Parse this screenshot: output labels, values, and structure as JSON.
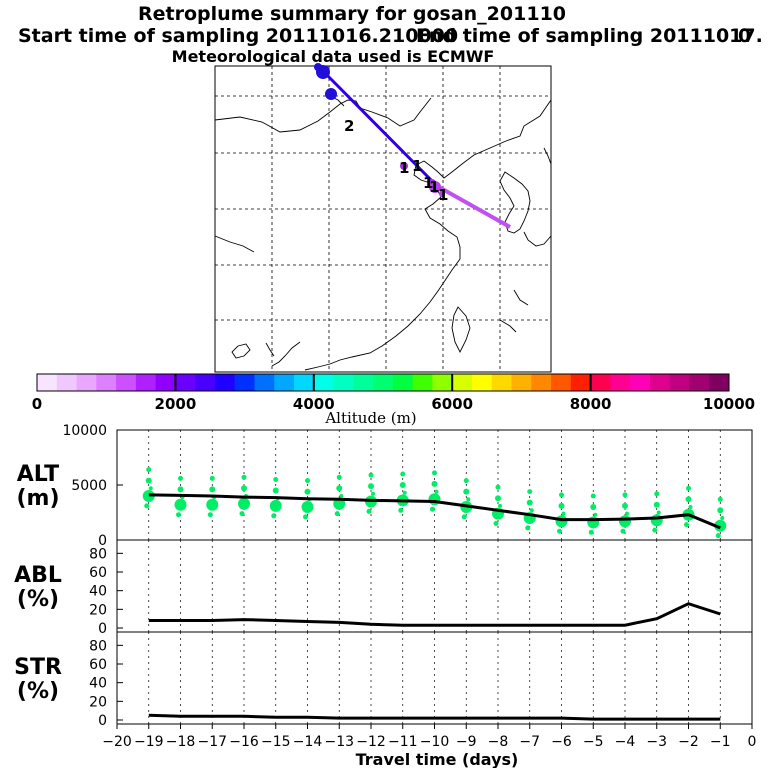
{
  "header": {
    "title": "Retroplume summary for gosan_201110",
    "start_label": "Start time of sampling 20111016.210000",
    "end_label": "End time of sampling 20111017.",
    "end_suffix": "0",
    "met_label": "Meteorological data used is ECMWF"
  },
  "colorbar": {
    "label": "Altitude (m)",
    "ticks": [
      "0",
      "2000",
      "4000",
      "6000",
      "8000",
      "10000"
    ],
    "range": [
      0,
      10000
    ],
    "colors": [
      "#f8e4ff",
      "#f0c8ff",
      "#e8a8ff",
      "#dc80ff",
      "#cc50ff",
      "#b020ff",
      "#9000ff",
      "#6a00ff",
      "#4a00ff",
      "#2200ff",
      "#0030ff",
      "#0070ff",
      "#00a8ff",
      "#00d8ff",
      "#00ffe8",
      "#00ffc0",
      "#00ff98",
      "#00ff70",
      "#00ff40",
      "#40ff00",
      "#90ff00",
      "#d8ff00",
      "#ffff00",
      "#ffd800",
      "#ffb000",
      "#ff8800",
      "#ff5800",
      "#ff2000",
      "#ff0050",
      "#ff0090",
      "#ff00b8",
      "#e00090",
      "#c00080",
      "#a00070",
      "#800060"
    ]
  },
  "map": {
    "trajectory_colors": [
      "#3000e0",
      "#c050f0"
    ],
    "labels": [
      {
        "text": "2"
      },
      {
        "text": "1"
      },
      {
        "text": "1"
      },
      {
        "text": "1"
      },
      {
        "text": "1"
      },
      {
        "text": "1"
      }
    ]
  },
  "chart_data": [
    {
      "type": "line",
      "title": "ALT",
      "ylabel": "ALT (m)",
      "ylabel_top": "ALT",
      "ylabel_bottom": "(m)",
      "x": [
        -19,
        -18,
        -17,
        -16,
        -15,
        -14,
        -13,
        -12,
        -11,
        -10,
        -9,
        -8,
        -7,
        -6,
        -5,
        -4,
        -3,
        -2,
        -1
      ],
      "ylim": [
        0,
        10000
      ],
      "yticks": [
        "10000",
        "5000",
        "0"
      ],
      "ytick_values": [
        10000,
        5000,
        0
      ],
      "series": [
        {
          "name": "mean altitude",
          "values": [
            4100,
            4050,
            4000,
            3900,
            3850,
            3750,
            3700,
            3600,
            3550,
            3500,
            3100,
            2700,
            2300,
            1850,
            1850,
            1900,
            2000,
            2300,
            1100
          ]
        },
        {
          "name": "plume points",
          "values": [
            4000,
            3200,
            3200,
            3300,
            3100,
            3000,
            3300,
            3500,
            3600,
            3700,
            3000,
            2400,
            2000,
            1700,
            1600,
            1700,
            1800,
            2300,
            1300
          ]
        }
      ]
    },
    {
      "type": "line",
      "title": "ABL",
      "ylabel": "ABL (%)",
      "ylabel_top": "ABL",
      "ylabel_bottom": "(%)",
      "x": [
        -19,
        -18,
        -17,
        -16,
        -15,
        -14,
        -13,
        -12,
        -11,
        -10,
        -9,
        -8,
        -7,
        -6,
        -5,
        -4,
        -3,
        -2,
        -1
      ],
      "ylim": [
        0,
        90
      ],
      "yticks": [
        "80",
        "60",
        "40",
        "20",
        "0"
      ],
      "ytick_values": [
        80,
        60,
        40,
        20,
        0
      ],
      "series": [
        {
          "name": "ABL fraction",
          "values": [
            8,
            8,
            8,
            9,
            8,
            7,
            6,
            4,
            3,
            3,
            3,
            3,
            3,
            3,
            3,
            3,
            10,
            26,
            15
          ]
        }
      ]
    },
    {
      "type": "line",
      "title": "STR",
      "ylabel": "STR (%)",
      "ylabel_top": "STR",
      "ylabel_bottom": "(%)",
      "x": [
        -19,
        -18,
        -17,
        -16,
        -15,
        -14,
        -13,
        -12,
        -11,
        -10,
        -9,
        -8,
        -7,
        -6,
        -5,
        -4,
        -3,
        -2,
        -1
      ],
      "ylim": [
        0,
        90
      ],
      "yticks": [
        "80",
        "60",
        "40",
        "20",
        "0"
      ],
      "ytick_values": [
        80,
        60,
        40,
        20,
        0
      ],
      "series": [
        {
          "name": "STR fraction",
          "values": [
            5,
            4,
            4,
            4,
            3,
            3,
            2,
            2,
            2,
            2,
            2,
            2,
            2,
            2,
            1,
            1,
            1,
            1,
            1
          ]
        }
      ]
    }
  ],
  "xaxis": {
    "xlabel": "Travel time (days)",
    "xlim": [
      -20,
      0
    ],
    "ticks": [
      -20,
      -19,
      -18,
      -17,
      -16,
      -15,
      -14,
      -13,
      -12,
      -11,
      -10,
      -9,
      -8,
      -7,
      -6,
      -5,
      -4,
      -3,
      -2,
      -1,
      0
    ],
    "tick_labels": [
      "−20",
      "−19",
      "−18",
      "−17",
      "−16",
      "−15",
      "−14",
      "−13",
      "−12",
      "−11",
      "−10",
      "−9",
      "−8",
      "−7",
      "−6",
      "−5",
      "−4",
      "−3",
      "−2",
      "−1",
      "0"
    ]
  }
}
